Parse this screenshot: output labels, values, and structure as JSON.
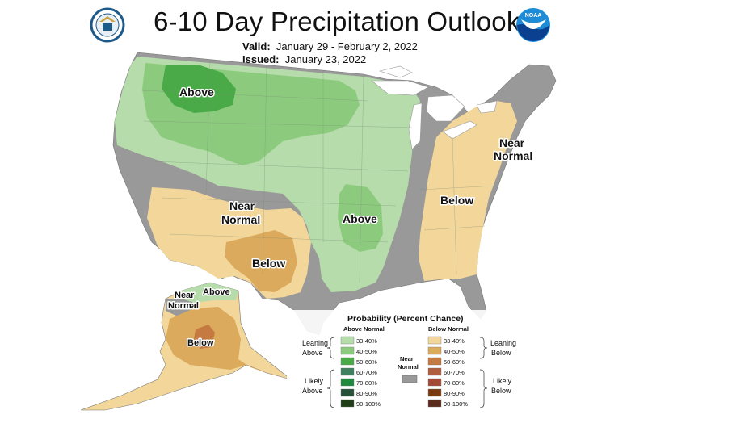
{
  "title": "6-10 Day Precipitation Outlook",
  "valid": {
    "label": "Valid:",
    "value": "January 29 - February 2, 2022"
  },
  "issued": {
    "label": "Issued:",
    "value": "January 23, 2022"
  },
  "logos": {
    "left_icon": "doc-seal-icon",
    "right_icon": "noaa-logo-icon"
  },
  "map_labels": {
    "above_nw": "Above",
    "above_central": "Above",
    "near_normal_sw": [
      "Near",
      "Normal"
    ],
    "below_tx": "Below",
    "below_east": "Below",
    "near_normal_ne": [
      "Near",
      "Normal"
    ],
    "ak_above": "Above",
    "ak_near_normal": [
      "Near",
      "Normal"
    ],
    "ak_below": "Below"
  },
  "legend": {
    "title": "Probability (Percent Chance)",
    "above_header": "Above Normal",
    "below_header": "Below Normal",
    "near_normal": [
      "Near",
      "Normal"
    ],
    "near_normal_color": "#999999",
    "leaning_above": [
      "Leaning",
      "Above"
    ],
    "likely_above": [
      "Likely",
      "Above"
    ],
    "leaning_below": [
      "Leaning",
      "Below"
    ],
    "likely_below": [
      "Likely",
      "Below"
    ],
    "above": [
      {
        "range": "33-40%",
        "color": "#b5dcaa"
      },
      {
        "range": "40-50%",
        "color": "#8ccb7e"
      },
      {
        "range": "50-60%",
        "color": "#4aaa48"
      },
      {
        "range": "60-70%",
        "color": "#3e8060"
      },
      {
        "range": "70-80%",
        "color": "#1f8a3e"
      },
      {
        "range": "80-90%",
        "color": "#25503a"
      },
      {
        "range": "90-100%",
        "color": "#1f3d17"
      }
    ],
    "below": [
      {
        "range": "33-40%",
        "color": "#f3d79a"
      },
      {
        "range": "40-50%",
        "color": "#dcaa5c"
      },
      {
        "range": "50-60%",
        "color": "#c47a40"
      },
      {
        "range": "60-70%",
        "color": "#b05e3c"
      },
      {
        "range": "70-80%",
        "color": "#a44a34"
      },
      {
        "range": "80-90%",
        "color": "#7a3a10"
      },
      {
        "range": "90-100%",
        "color": "#5a2a1a"
      }
    ]
  },
  "colors": {
    "near_normal": "#999999",
    "above_33": "#b5dcaa",
    "above_40": "#8ccb7e",
    "above_50": "#4aaa48",
    "below_33": "#f3d79a",
    "below_40": "#dcaa5c",
    "below_50": "#c47a40"
  }
}
